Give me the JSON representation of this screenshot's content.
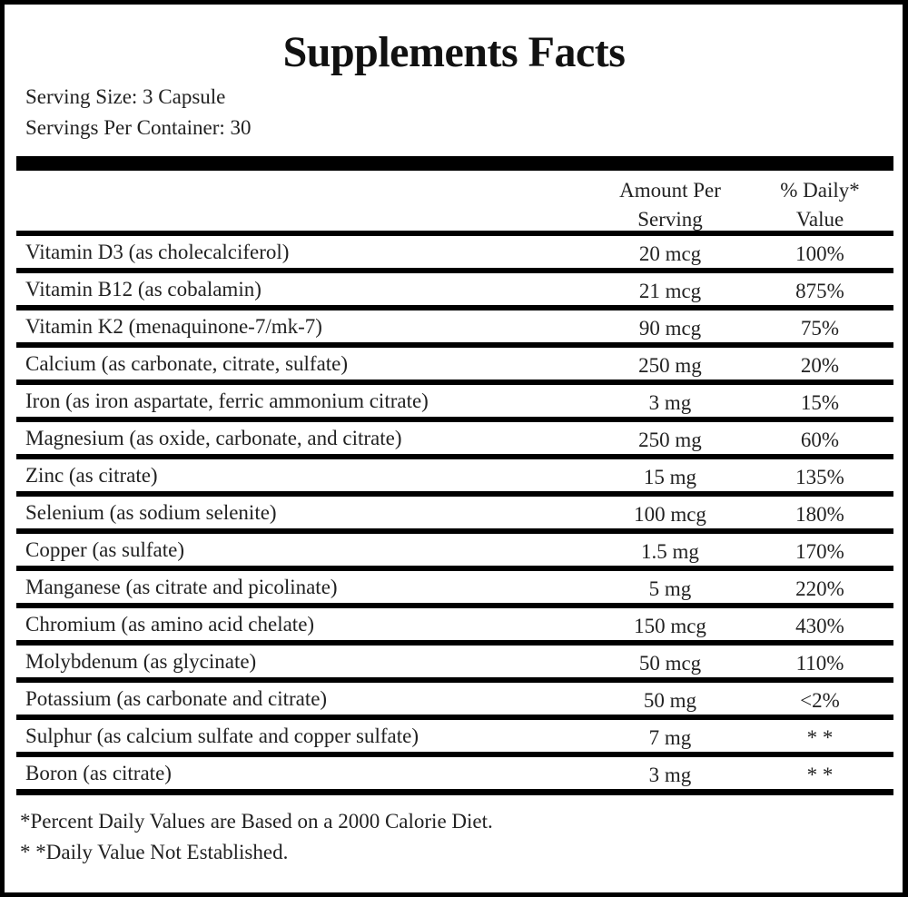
{
  "title": "Supplements Facts",
  "serving_size": "Serving Size: 3 Capsule",
  "servings_per_container": "Servings Per Container: 30",
  "columns": {
    "amount_line1": "Amount Per",
    "amount_line2": "Serving",
    "dv_line1": "% Daily*",
    "dv_line2": "Value"
  },
  "rows": [
    {
      "name": "Vitamin D3 (as cholecalciferol)",
      "amount": "20 mcg",
      "dv": "100%"
    },
    {
      "name": "Vitamin B12 (as cobalamin)",
      "amount": "21 mcg",
      "dv": "875%"
    },
    {
      "name": "Vitamin K2 (menaquinone-7/mk-7)",
      "amount": "90 mcg",
      "dv": "75%"
    },
    {
      "name": "Calcium (as carbonate, citrate, sulfate)",
      "amount": "250 mg",
      "dv": "20%"
    },
    {
      "name": "Iron (as iron aspartate, ferric ammonium citrate)",
      "amount": "3 mg",
      "dv": "15%"
    },
    {
      "name": "Magnesium (as oxide, carbonate, and citrate)",
      "amount": "250 mg",
      "dv": "60%"
    },
    {
      "name": "Zinc (as citrate)",
      "amount": "15 mg",
      "dv": "135%"
    },
    {
      "name": "Selenium (as sodium selenite)",
      "amount": "100 mcg",
      "dv": "180%"
    },
    {
      "name": "Copper (as sulfate)",
      "amount": "1.5 mg",
      "dv": "170%"
    },
    {
      "name": "Manganese (as citrate and picolinate)",
      "amount": "5 mg",
      "dv": "220%"
    },
    {
      "name": "Chromium (as amino acid chelate)",
      "amount": "150 mcg",
      "dv": "430%"
    },
    {
      "name": "Molybdenum (as glycinate)",
      "amount": "50 mcg",
      "dv": "110%"
    },
    {
      "name": "Potassium (as carbonate and citrate)",
      "amount": "50 mg",
      "dv": "<2%"
    },
    {
      "name": "Sulphur (as calcium sulfate and copper sulfate)",
      "amount": "7 mg",
      "dv": "* *"
    },
    {
      "name": "Boron (as citrate)",
      "amount": "3 mg",
      "dv": "* *"
    }
  ],
  "footnotes": [
    "*Percent Daily Values are Based on a 2000 Calorie Diet.",
    "* *Daily Value Not Established."
  ]
}
